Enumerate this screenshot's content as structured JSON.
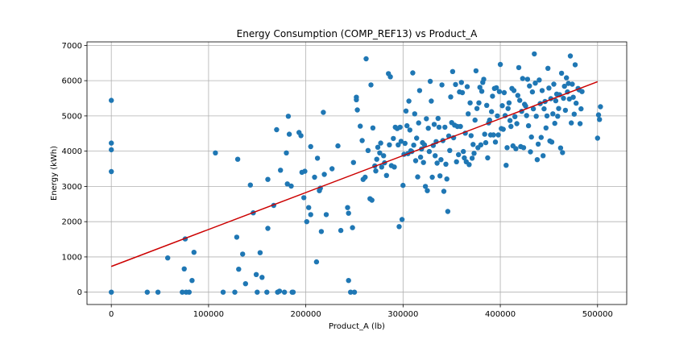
{
  "chart_data": {
    "type": "scatter",
    "title": "Energy Consumption (COMP_REF13) vs Product_A",
    "xlabel": "Product_A (lb)",
    "ylabel": "Energy (kWh)",
    "xlim": [
      -25000,
      530000
    ],
    "ylim": [
      -350,
      7100
    ],
    "x_ticks": [
      0,
      100000,
      200000,
      300000,
      400000,
      500000
    ],
    "x_tick_labels": [
      "0",
      "100000",
      "200000",
      "300000",
      "400000",
      "500000"
    ],
    "y_ticks": [
      0,
      1000,
      2000,
      3000,
      4000,
      5000,
      6000,
      7000
    ],
    "y_tick_labels": [
      "0",
      "1000",
      "2000",
      "3000",
      "4000",
      "5000",
      "6000",
      "7000"
    ],
    "grid": true,
    "colors": {
      "points": "#1f77b4",
      "trend": "#cc0000",
      "grid": "#b0b0b0"
    },
    "trend_line": {
      "x": [
        0,
        500000
      ],
      "y": [
        730,
        5970
      ]
    },
    "points": [
      [
        0,
        0
      ],
      [
        0,
        3420
      ],
      [
        0,
        4040
      ],
      [
        0,
        4230
      ],
      [
        0,
        5440
      ],
      [
        37000,
        0
      ],
      [
        48000,
        0
      ],
      [
        58000,
        970
      ],
      [
        73000,
        0
      ],
      [
        75000,
        660
      ],
      [
        76000,
        1510
      ],
      [
        77000,
        0
      ],
      [
        80000,
        0
      ],
      [
        83000,
        330
      ],
      [
        85000,
        1130
      ],
      [
        107000,
        3950
      ],
      [
        115000,
        0
      ],
      [
        127000,
        0
      ],
      [
        129000,
        1560
      ],
      [
        130000,
        3770
      ],
      [
        131000,
        650
      ],
      [
        135000,
        1080
      ],
      [
        138000,
        240
      ],
      [
        143000,
        3040
      ],
      [
        146000,
        2250
      ],
      [
        149000,
        500
      ],
      [
        150000,
        0
      ],
      [
        153000,
        1120
      ],
      [
        155000,
        420
      ],
      [
        160000,
        0
      ],
      [
        161000,
        3200
      ],
      [
        161000,
        1810
      ],
      [
        167000,
        2460
      ],
      [
        170000,
        4610
      ],
      [
        171000,
        0
      ],
      [
        173000,
        30
      ],
      [
        174000,
        3460
      ],
      [
        178000,
        0
      ],
      [
        180000,
        3950
      ],
      [
        181000,
        3070
      ],
      [
        182000,
        4990
      ],
      [
        183000,
        4480
      ],
      [
        185000,
        3010
      ],
      [
        186000,
        0
      ],
      [
        187000,
        0
      ],
      [
        193000,
        4530
      ],
      [
        195000,
        4440
      ],
      [
        196000,
        3400
      ],
      [
        198000,
        2680
      ],
      [
        199000,
        3430
      ],
      [
        201000,
        2000
      ],
      [
        203000,
        2400
      ],
      [
        205000,
        4130
      ],
      [
        205000,
        2200
      ],
      [
        209000,
        3260
      ],
      [
        211000,
        860
      ],
      [
        212000,
        3800
      ],
      [
        214000,
        2880
      ],
      [
        215000,
        2950
      ],
      [
        216000,
        1720
      ],
      [
        218000,
        5100
      ],
      [
        219000,
        3340
      ],
      [
        221000,
        2200
      ],
      [
        227000,
        3500
      ],
      [
        233000,
        4150
      ],
      [
        236000,
        1750
      ],
      [
        243000,
        2400
      ],
      [
        244000,
        2240
      ],
      [
        244000,
        330
      ],
      [
        246000,
        0
      ],
      [
        248000,
        1830
      ],
      [
        249000,
        3680
      ],
      [
        250000,
        0
      ],
      [
        252000,
        5530
      ],
      [
        252000,
        5460
      ],
      [
        253000,
        5170
      ],
      [
        256000,
        4710
      ],
      [
        258000,
        4300
      ],
      [
        259000,
        3200
      ],
      [
        261000,
        3260
      ],
      [
        262000,
        6620
      ],
      [
        264000,
        4020
      ],
      [
        266000,
        2650
      ],
      [
        267000,
        5880
      ],
      [
        268000,
        2610
      ],
      [
        269000,
        4660
      ],
      [
        271000,
        3580
      ],
      [
        272000,
        3440
      ],
      [
        273000,
        3770
      ],
      [
        274000,
        4110
      ],
      [
        276000,
        3950
      ],
      [
        277000,
        4230
      ],
      [
        278000,
        3550
      ],
      [
        280000,
        3870
      ],
      [
        281000,
        3670
      ],
      [
        283000,
        3310
      ],
      [
        285000,
        6200
      ],
      [
        286000,
        4180
      ],
      [
        287000,
        6110
      ],
      [
        288000,
        3590
      ],
      [
        290000,
        4360
      ],
      [
        291000,
        3550
      ],
      [
        292000,
        4680
      ],
      [
        294000,
        4640
      ],
      [
        295000,
        4180
      ],
      [
        296000,
        1860
      ],
      [
        297000,
        4680
      ],
      [
        298000,
        4280
      ],
      [
        299000,
        2060
      ],
      [
        300000,
        3030
      ],
      [
        301000,
        3910
      ],
      [
        302000,
        4220
      ],
      [
        303000,
        5140
      ],
      [
        304000,
        4720
      ],
      [
        305000,
        3930
      ],
      [
        306000,
        5420
      ],
      [
        307000,
        4600
      ],
      [
        308000,
        4010
      ],
      [
        309000,
        3990
      ],
      [
        310000,
        6220
      ],
      [
        311000,
        4170
      ],
      [
        312000,
        5060
      ],
      [
        313000,
        3730
      ],
      [
        314000,
        4370
      ],
      [
        315000,
        3270
      ],
      [
        316000,
        4800
      ],
      [
        317000,
        5720
      ],
      [
        318000,
        3830
      ],
      [
        319000,
        4060
      ],
      [
        320000,
        4240
      ],
      [
        321000,
        3680
      ],
      [
        322000,
        4180
      ],
      [
        323000,
        3000
      ],
      [
        324000,
        4920
      ],
      [
        325000,
        2880
      ],
      [
        326000,
        4650
      ],
      [
        327000,
        3990
      ],
      [
        328000,
        5980
      ],
      [
        329000,
        5420
      ],
      [
        330000,
        3260
      ],
      [
        331000,
        4160
      ],
      [
        332000,
        4760
      ],
      [
        333000,
        3870
      ],
      [
        334000,
        4270
      ],
      [
        335000,
        3660
      ],
      [
        336000,
        4930
      ],
      [
        337000,
        4680
      ],
      [
        338000,
        3300
      ],
      [
        339000,
        3760
      ],
      [
        340000,
        5880
      ],
      [
        341000,
        4300
      ],
      [
        342000,
        2860
      ],
      [
        343000,
        4680
      ],
      [
        344000,
        3630
      ],
      [
        345000,
        3210
      ],
      [
        346000,
        2290
      ],
      [
        347000,
        4430
      ],
      [
        348000,
        4020
      ],
      [
        349000,
        5540
      ],
      [
        350000,
        4810
      ],
      [
        351000,
        6260
      ],
      [
        352000,
        4380
      ],
      [
        353000,
        4740
      ],
      [
        354000,
        5890
      ],
      [
        355000,
        3700
      ],
      [
        356000,
        4700
      ],
      [
        357000,
        3900
      ],
      [
        358000,
        5680
      ],
      [
        359000,
        4700
      ],
      [
        360000,
        5950
      ],
      [
        361000,
        5660
      ],
      [
        362000,
        3990
      ],
      [
        363000,
        3810
      ],
      [
        364000,
        4510
      ],
      [
        365000,
        3700
      ],
      [
        366000,
        5830
      ],
      [
        367000,
        5060
      ],
      [
        368000,
        3620
      ],
      [
        369000,
        5370
      ],
      [
        370000,
        4440
      ],
      [
        371000,
        3800
      ],
      [
        372000,
        4190
      ],
      [
        373000,
        3940
      ],
      [
        374000,
        4880
      ],
      [
        375000,
        6280
      ],
      [
        376000,
        5210
      ],
      [
        377000,
        4100
      ],
      [
        378000,
        5370
      ],
      [
        379000,
        5810
      ],
      [
        380000,
        4180
      ],
      [
        381000,
        5700
      ],
      [
        382000,
        5950
      ],
      [
        383000,
        6040
      ],
      [
        384000,
        4480
      ],
      [
        385000,
        4240
      ],
      [
        386000,
        5300
      ],
      [
        387000,
        3810
      ],
      [
        388000,
        4800
      ],
      [
        389000,
        4880
      ],
      [
        390000,
        4460
      ],
      [
        391000,
        5120
      ],
      [
        392000,
        5560
      ],
      [
        393000,
        4460
      ],
      [
        394000,
        5780
      ],
      [
        395000,
        4260
      ],
      [
        396000,
        5800
      ],
      [
        397000,
        5000
      ],
      [
        398000,
        4460
      ],
      [
        399000,
        5690
      ],
      [
        400000,
        6460
      ],
      [
        401000,
        4640
      ],
      [
        402000,
        5290
      ],
      [
        403000,
        4620
      ],
      [
        404000,
        5660
      ],
      [
        405000,
        5010
      ],
      [
        406000,
        3600
      ],
      [
        407000,
        4100
      ],
      [
        408000,
        5210
      ],
      [
        409000,
        5370
      ],
      [
        410000,
        4870
      ],
      [
        411000,
        4700
      ],
      [
        412000,
        5780
      ],
      [
        413000,
        4150
      ],
      [
        414000,
        5720
      ],
      [
        415000,
        4980
      ],
      [
        416000,
        4070
      ],
      [
        417000,
        4780
      ],
      [
        418000,
        5580
      ],
      [
        419000,
        6370
      ],
      [
        420000,
        5440
      ],
      [
        421000,
        4130
      ],
      [
        422000,
        5130
      ],
      [
        423000,
        6060
      ],
      [
        424000,
        4100
      ],
      [
        425000,
        5330
      ],
      [
        426000,
        5280
      ],
      [
        427000,
        5010
      ],
      [
        428000,
        6040
      ],
      [
        429000,
        4720
      ],
      [
        430000,
        5850
      ],
      [
        431000,
        3980
      ],
      [
        432000,
        4400
      ],
      [
        433000,
        5680
      ],
      [
        434000,
        5200
      ],
      [
        435000,
        6760
      ],
      [
        436000,
        5930
      ],
      [
        437000,
        4990
      ],
      [
        438000,
        3760
      ],
      [
        439000,
        4200
      ],
      [
        440000,
        6020
      ],
      [
        441000,
        5350
      ],
      [
        442000,
        4390
      ],
      [
        443000,
        5720
      ],
      [
        444000,
        3870
      ],
      [
        445000,
        5200
      ],
      [
        446000,
        5410
      ],
      [
        447000,
        4660
      ],
      [
        448000,
        5000
      ],
      [
        449000,
        6350
      ],
      [
        450000,
        5790
      ],
      [
        451000,
        4290
      ],
      [
        452000,
        5490
      ],
      [
        453000,
        4260
      ],
      [
        454000,
        5060
      ],
      [
        455000,
        5900
      ],
      [
        456000,
        4790
      ],
      [
        457000,
        5430
      ],
      [
        458000,
        5620
      ],
      [
        459000,
        4990
      ],
      [
        460000,
        5210
      ],
      [
        461000,
        5600
      ],
      [
        462000,
        4090
      ],
      [
        463000,
        6210
      ],
      [
        464000,
        3960
      ],
      [
        465000,
        5500
      ],
      [
        466000,
        5840
      ],
      [
        467000,
        5160
      ],
      [
        468000,
        6080
      ],
      [
        469000,
        5680
      ],
      [
        470000,
        5920
      ],
      [
        471000,
        5480
      ],
      [
        472000,
        6700
      ],
      [
        473000,
        4800
      ],
      [
        474000,
        5900
      ],
      [
        475000,
        5530
      ],
      [
        476000,
        5050
      ],
      [
        477000,
        6450
      ],
      [
        478000,
        5360
      ],
      [
        480000,
        5780
      ],
      [
        481000,
        5740
      ],
      [
        482000,
        4780
      ],
      [
        483000,
        5200
      ],
      [
        484000,
        5690
      ],
      [
        500000,
        4370
      ],
      [
        501000,
        5030
      ],
      [
        502000,
        4900
      ],
      [
        503000,
        5260
      ]
    ]
  }
}
